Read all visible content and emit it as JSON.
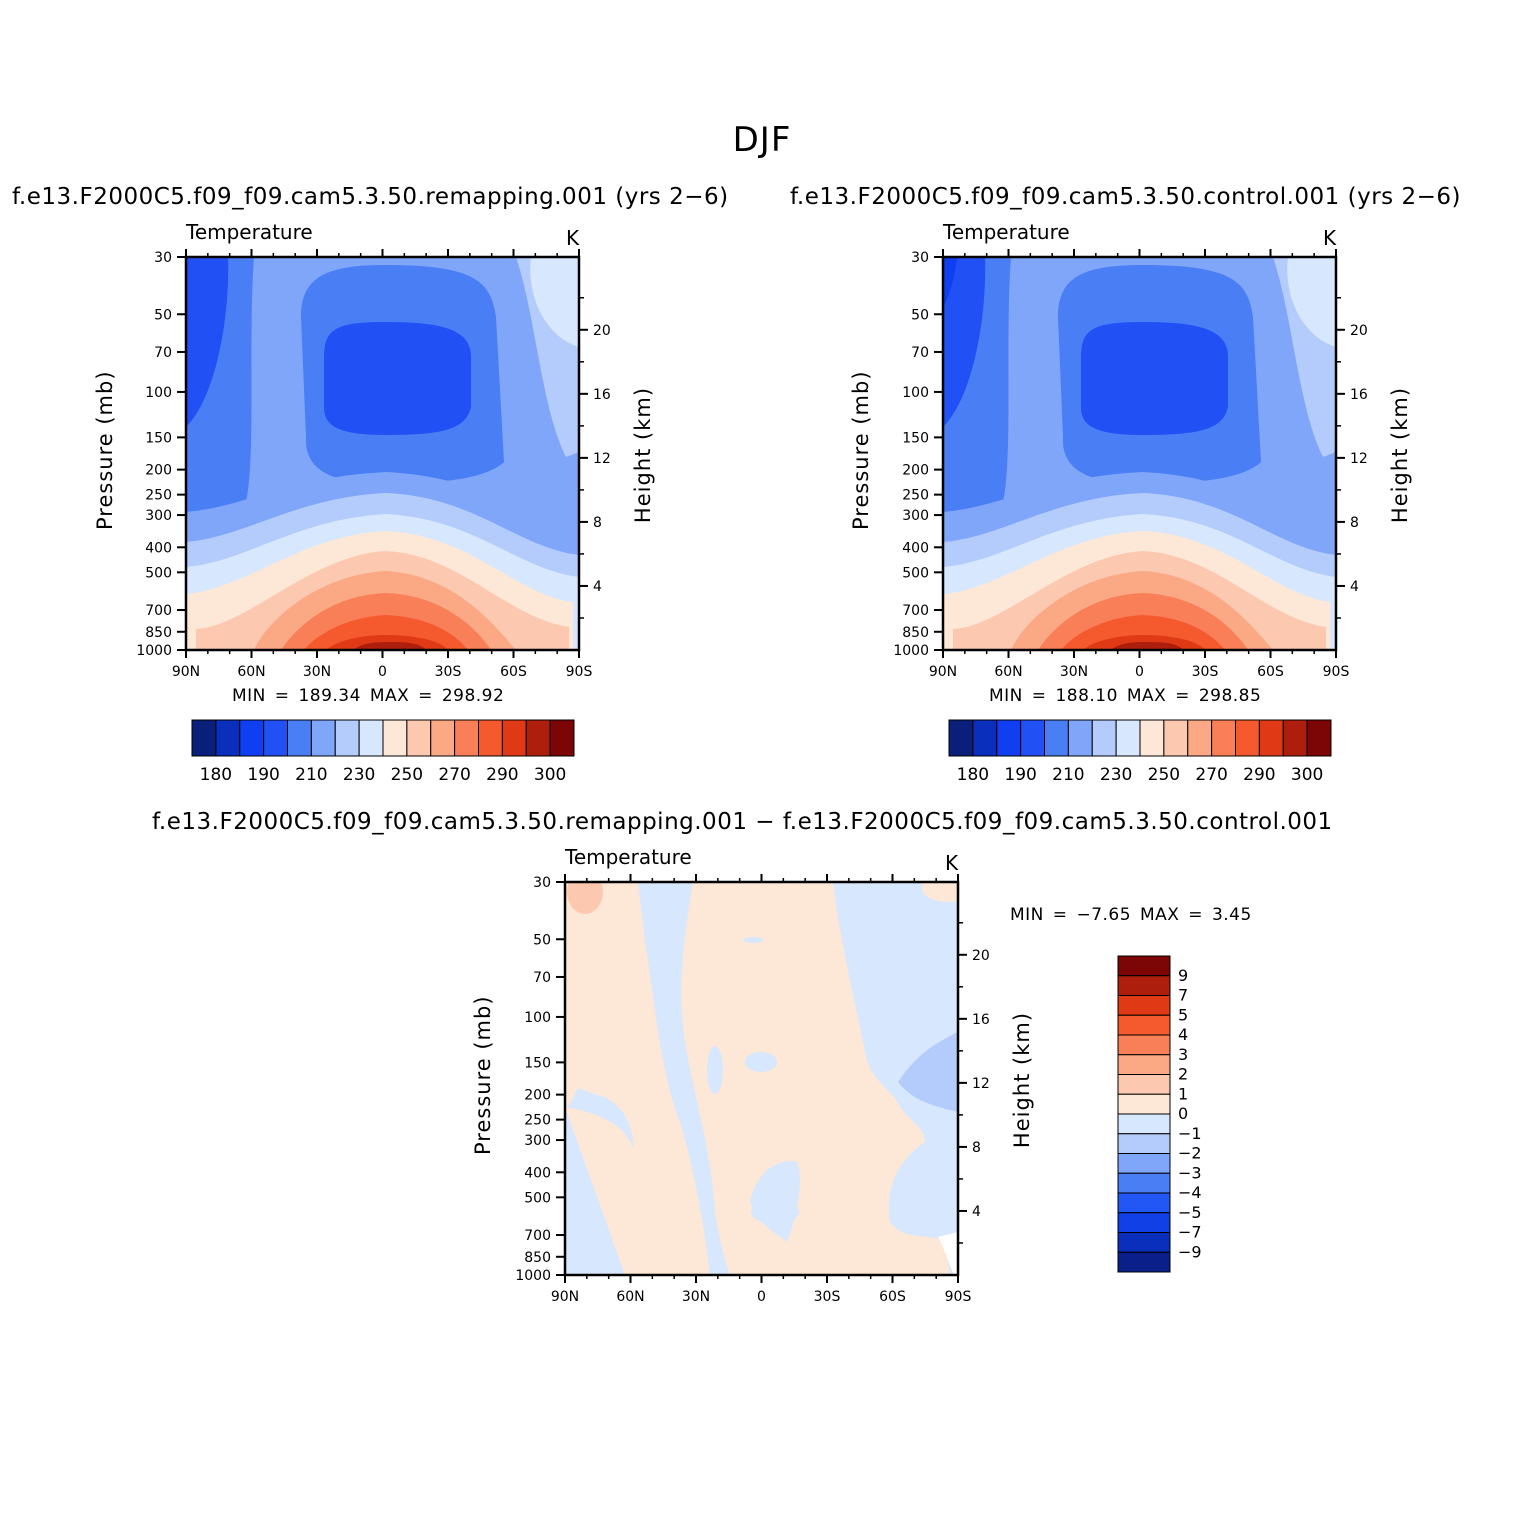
{
  "figure": {
    "title": "DJF"
  },
  "colors": {
    "abs_levels_colors": [
      "#0a1f7a",
      "#0a2fbd",
      "#0f3ff0",
      "#2150f5",
      "#4a7ef5",
      "#80a6fa",
      "#b3ccfb",
      "#d7e7fd",
      "#fde8d8",
      "#fcc9b0",
      "#fba884",
      "#f97f58",
      "#f55a2e",
      "#df3a15",
      "#ae1e0c",
      "#7c0606"
    ],
    "diff_levels_colors": [
      "#0a1f8a",
      "#0a2fbd",
      "#1040e6",
      "#2256f5",
      "#4a7ef5",
      "#80a6fa",
      "#b3ccfb",
      "#d7e7fd",
      "#fde8d8",
      "#fcc9b0",
      "#fba884",
      "#f97f58",
      "#f55a2e",
      "#df3a15",
      "#ae1e0c",
      "#7c0606"
    ]
  },
  "panels": [
    {
      "id": "remapping",
      "run_title": "f.e13.F2000C5.f09_f09.cam5.3.50.remapping.001 (yrs 2−6)",
      "variable": "Temperature",
      "units": "K",
      "y_label_left": "Pressure (mb)",
      "y_label_right": "Height (km)",
      "min_max": "MIN =  189.34   MAX =  298.92"
    },
    {
      "id": "control",
      "run_title": "f.e13.F2000C5.f09_f09.cam5.3.50.control.001 (yrs 2−6)",
      "variable": "Temperature",
      "units": "K",
      "y_label_left": "Pressure (mb)",
      "y_label_right": "Height (km)",
      "min_max": "MIN =  188.10   MAX =  298.85"
    },
    {
      "id": "difference",
      "run_title": "f.e13.F2000C5.f09_f09.cam5.3.50.remapping.001 − f.e13.F2000C5.f09_f09.cam5.3.50.control.001",
      "variable": "Temperature",
      "units": "K",
      "y_label_left": "Pressure (mb)",
      "y_label_right": "Height (km)",
      "min_max": "MIN =   −7.65   MAX =     3.45"
    }
  ],
  "axes": {
    "x_ticks": [
      "90N",
      "60N",
      "30N",
      "0",
      "30S",
      "60S",
      "90S"
    ],
    "pressure_ticks": [
      30,
      50,
      70,
      100,
      150,
      200,
      250,
      300,
      400,
      500,
      700,
      850,
      1000
    ],
    "height_ticks": [
      20,
      16,
      12,
      8,
      4
    ]
  },
  "colorbars": {
    "absolute_labels": [
      "180",
      "190",
      "210",
      "230",
      "250",
      "270",
      "290",
      "300"
    ],
    "difference_labels": [
      "9",
      "7",
      "5",
      "4",
      "3",
      "2",
      "1",
      "0",
      "−1",
      "−2",
      "−3",
      "−4",
      "−5",
      "−7",
      "−9"
    ]
  },
  "chart_data": [
    {
      "type": "heatmap",
      "title": "f.e13.F2000C5.f09_f09.cam5.3.50.remapping.001 (yrs 2−6)",
      "variable": "Temperature",
      "units": "K",
      "xlabel": "",
      "ylabel": "Pressure (mb)",
      "ylabel_right": "Height (km)",
      "x_ticks": [
        "90N",
        "60N",
        "30N",
        "0",
        "30S",
        "60S",
        "90S"
      ],
      "x_range": [
        90,
        -90
      ],
      "y_scale": "log",
      "ylim": [
        1000,
        30
      ],
      "min": 189.34,
      "max": 298.92
    },
    {
      "type": "heatmap",
      "title": "f.e13.F2000C5.f09_f09.cam5.3.50.control.001 (yrs 2−6)",
      "variable": "Temperature",
      "units": "K",
      "xlabel": "",
      "ylabel": "Pressure (mb)",
      "ylabel_right": "Height (km)",
      "x_ticks": [
        "90N",
        "60N",
        "30N",
        "0",
        "30S",
        "60S",
        "90S"
      ],
      "x_range": [
        90,
        -90
      ],
      "y_scale": "log",
      "ylim": [
        1000,
        30
      ],
      "min": 188.1,
      "max": 298.85
    },
    {
      "type": "heatmap",
      "title": "f.e13.F2000C5.f09_f09.cam5.3.50.remapping.001 − f.e13.F2000C5.f09_f09.cam5.3.50.control.001",
      "variable": "Temperature",
      "units": "K",
      "xlabel": "",
      "ylabel": "Pressure (mb)",
      "ylabel_right": "Height (km)",
      "x_ticks": [
        "90N",
        "60N",
        "30N",
        "0",
        "30S",
        "60S",
        "90S"
      ],
      "x_range": [
        90,
        -90
      ],
      "y_scale": "log",
      "ylim": [
        1000,
        30
      ],
      "min": -7.65,
      "max": 3.45
    }
  ]
}
